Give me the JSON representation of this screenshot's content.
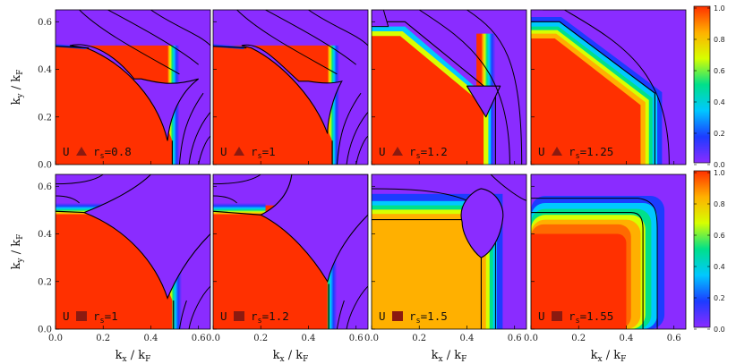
{
  "chart_data": {
    "type": "heatmap",
    "x_range": [
      0.0,
      0.65
    ],
    "y_range": [
      0.0,
      0.65
    ],
    "x_ticks": [
      "0.0",
      "0.2",
      "0.4",
      "0.6"
    ],
    "y_ticks": [
      "0.0",
      "0.2",
      "0.4",
      "0.6"
    ],
    "x_axis": {
      "var": "k",
      "sub": "x",
      "slash": " / ",
      "den": "k",
      "densub": "F"
    },
    "y_axis": {
      "var": "k",
      "sub": "y",
      "slash": " / ",
      "den": "k",
      "densub": "F"
    },
    "colorbar": {
      "range": [
        0.0,
        1.0
      ],
      "ticks": [
        "0.0",
        "0.2",
        "0.4",
        "0.6",
        "0.8",
        "1.0"
      ],
      "colors": [
        "#8a2cff",
        "#1c3cff",
        "#00c8ff",
        "#00e08a",
        "#d7ff00",
        "#ffb000",
        "#ff3000"
      ]
    },
    "marker_colors": {
      "triangle": "#8b1a10",
      "square": "#8b1a10"
    },
    "rows": [
      {
        "marker": "triangle",
        "panels": [
          {
            "prefix": "U",
            "sym": "r",
            "sub": "s",
            "value": "=0.8"
          },
          {
            "prefix": "U",
            "sym": "r",
            "sub": "s",
            "value": "=1"
          },
          {
            "prefix": "U",
            "sym": "r",
            "sub": "s",
            "value": "=1.2"
          },
          {
            "prefix": "U",
            "sym": "r",
            "sub": "s",
            "value": "=1.25"
          }
        ]
      },
      {
        "marker": "square",
        "panels": [
          {
            "prefix": "U",
            "sym": "r",
            "sub": "s",
            "value": "=1"
          },
          {
            "prefix": "U",
            "sym": "r",
            "sub": "s",
            "value": "=1.2"
          },
          {
            "prefix": "U",
            "sym": "r",
            "sub": "s",
            "value": "=1.5"
          },
          {
            "prefix": "U",
            "sym": "r",
            "sub": "s",
            "value": "=1.55"
          }
        ]
      }
    ]
  }
}
